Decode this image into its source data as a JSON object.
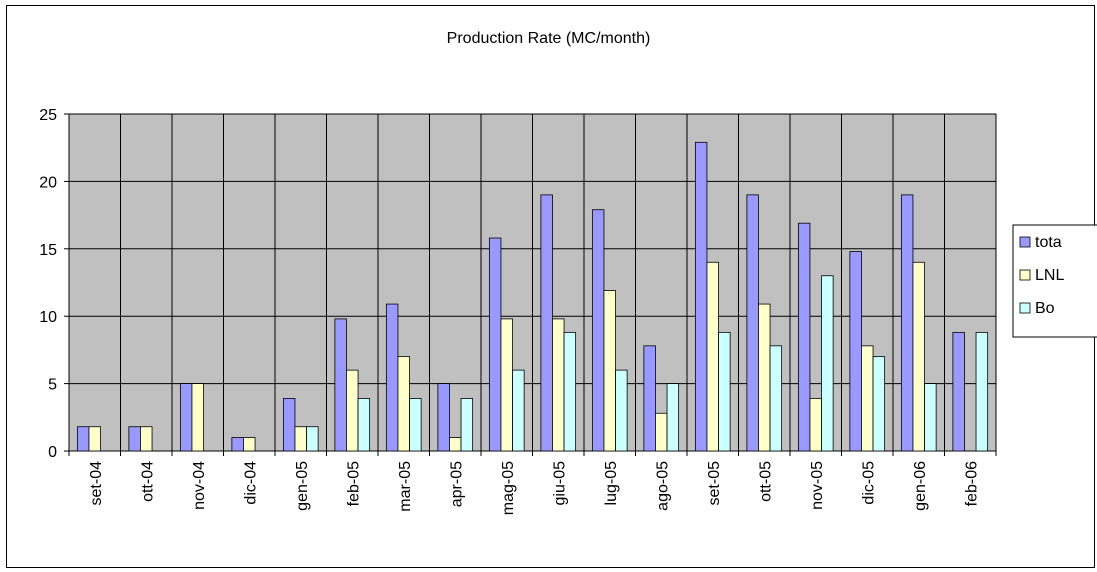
{
  "chart_data": {
    "type": "bar",
    "title": "Production Rate (MC/month)",
    "xlabel": "",
    "ylabel": "",
    "ylim": [
      0,
      25
    ],
    "yticks": [
      0,
      5,
      10,
      15,
      20,
      25
    ],
    "grid": true,
    "legend_position": "right",
    "plot_background": "#c0c0c0",
    "categories": [
      "set-04",
      "ott-04",
      "nov-04",
      "dic-04",
      "gen-05",
      "feb-05",
      "mar-05",
      "apr-05",
      "mag-05",
      "giu-05",
      "lug-05",
      "ago-05",
      "set-05",
      "ott-05",
      "nov-05",
      "dic-05",
      "gen-06",
      "feb-06"
    ],
    "series": [
      {
        "name": "tota",
        "color": "#9999ff",
        "values": [
          1.8,
          1.8,
          5,
          1,
          3.9,
          9.8,
          10.9,
          5,
          15.8,
          19,
          17.9,
          7.8,
          22.9,
          19,
          16.9,
          14.8,
          19,
          8.8
        ]
      },
      {
        "name": "LNL",
        "color": "#ffffcc",
        "values": [
          1.8,
          1.8,
          5,
          1,
          1.8,
          6,
          7,
          1,
          9.8,
          9.8,
          11.9,
          2.8,
          14,
          10.9,
          3.9,
          7.8,
          14,
          0
        ]
      },
      {
        "name": "Bo",
        "color": "#ccffff",
        "values": [
          0,
          0,
          0,
          0,
          1.8,
          3.9,
          3.9,
          3.9,
          6,
          8.8,
          6,
          5,
          8.8,
          7.8,
          13,
          7,
          5,
          8.8
        ]
      }
    ]
  }
}
